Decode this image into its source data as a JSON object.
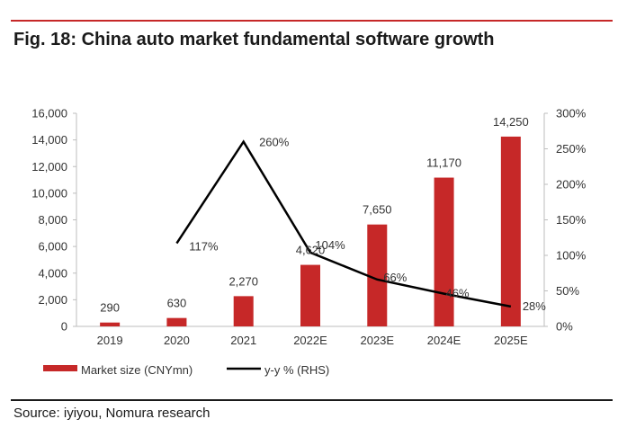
{
  "figure": {
    "title": "Fig. 18: China auto market fundamental software growth",
    "source": "Source: iyiyou, Nomura research"
  },
  "chart_data": {
    "type": "bar",
    "categories": [
      "2019",
      "2020",
      "2021",
      "2022E",
      "2023E",
      "2024E",
      "2025E"
    ],
    "series": [
      {
        "name": "Market size (CNYmn)",
        "kind": "bar",
        "axis": "left",
        "color": "#c62828",
        "values": [
          290,
          630,
          2270,
          4620,
          7650,
          11170,
          14250
        ],
        "labels": [
          "290",
          "630",
          "2,270",
          "4,620",
          "7,650",
          "11,170",
          "14,250"
        ]
      },
      {
        "name": "y-y % (RHS)",
        "kind": "line",
        "axis": "right",
        "color": "#000000",
        "values": [
          null,
          117,
          260,
          104,
          66,
          46,
          28
        ],
        "labels": [
          "",
          "117%",
          "260%",
          "104%",
          "66%",
          "46%",
          "28%"
        ]
      }
    ],
    "y_left": {
      "ylim": [
        0,
        16000
      ],
      "ticks": [
        "0",
        "2,000",
        "4,000",
        "6,000",
        "8,000",
        "10,000",
        "12,000",
        "14,000",
        "16,000"
      ]
    },
    "y_right": {
      "ylim": [
        0,
        300
      ],
      "ticks": [
        "0%",
        "50%",
        "100%",
        "150%",
        "200%",
        "250%",
        "300%"
      ]
    },
    "grid": false,
    "legend_position": "bottom-left"
  }
}
